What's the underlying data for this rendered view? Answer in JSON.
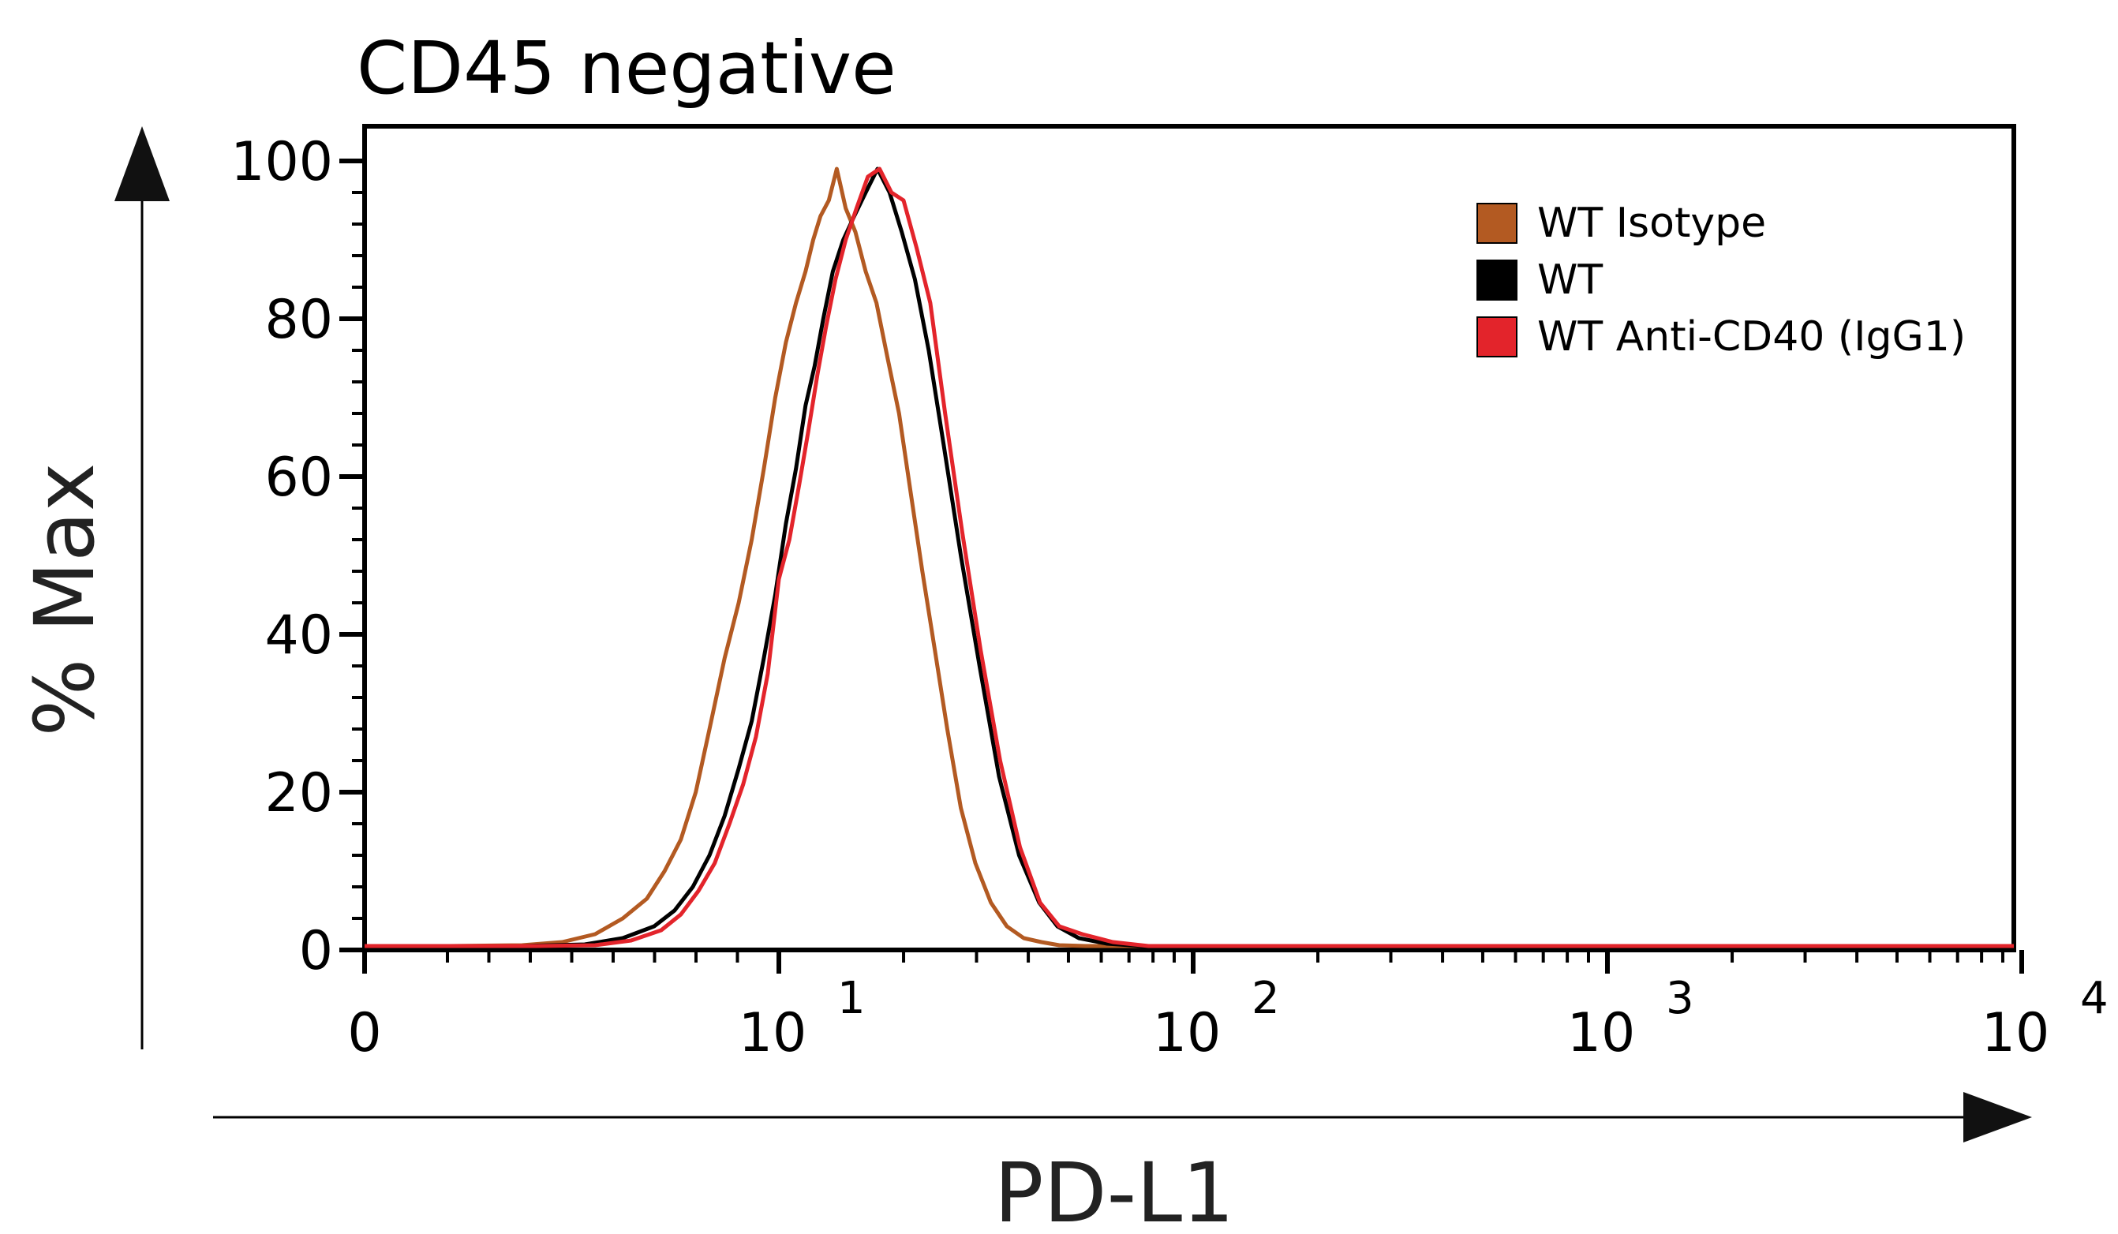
{
  "chart_data": {
    "type": "line",
    "title": "CD45 negative",
    "xlabel": "PD-L1",
    "ylabel": "% Max",
    "x_scale": "biexponential",
    "xlim": [
      0,
      10000
    ],
    "ylim": [
      0,
      100
    ],
    "x_ticks": [
      {
        "value": 0,
        "base": "0",
        "exp": ""
      },
      {
        "value": 10,
        "base": "10",
        "exp": "1"
      },
      {
        "value": 100,
        "base": "10",
        "exp": "2"
      },
      {
        "value": 1000,
        "base": "10",
        "exp": "3"
      },
      {
        "value": 10000,
        "base": "10",
        "exp": "4"
      }
    ],
    "y_ticks": [
      "0",
      "20",
      "40",
      "60",
      "80",
      "100"
    ],
    "grid": false,
    "legend_position": "top-right",
    "series": [
      {
        "name": "WT Isotype",
        "color": "#b35a22",
        "x": [
          0,
          1.6,
          2.4,
          3.0,
          3.6,
          4.2,
          4.8,
          5.3,
          5.8,
          6.3,
          6.8,
          7.4,
          8.0,
          8.6,
          9.2,
          9.8,
          10.4,
          11.0,
          11.6,
          12.1,
          12.6,
          13.2,
          13.8,
          14.5,
          15.3,
          16.2,
          17.2,
          18.3,
          19.5,
          20.8,
          22.2,
          23.8,
          25.5,
          27.5,
          29.8,
          32.5,
          35.5,
          39.0,
          43.0,
          47.5,
          55.0,
          65.0,
          80.0,
          200.0,
          1000.0,
          10000.0
        ],
        "y": [
          0.5,
          0.5,
          0.6,
          1.0,
          2.0,
          4.0,
          6.5,
          10.0,
          14.0,
          20.0,
          28.0,
          37.0,
          44.0,
          52.0,
          61.0,
          70.0,
          77.0,
          82.0,
          86.0,
          90.0,
          93.0,
          95.0,
          99.0,
          94.0,
          91.0,
          86.0,
          82.0,
          75.0,
          68.0,
          58.0,
          48.0,
          38.0,
          28.0,
          18.0,
          11.0,
          6.0,
          3.0,
          1.5,
          1.0,
          0.6,
          0.5,
          0.5,
          0.5,
          0.5,
          0.5,
          0.5
        ]
      },
      {
        "name": "WT",
        "color": "#000000",
        "x": [
          0,
          2.4,
          3.4,
          4.2,
          5.0,
          5.6,
          6.2,
          6.8,
          7.4,
          8.0,
          8.6,
          9.2,
          9.8,
          10.4,
          11.0,
          11.6,
          12.2,
          12.8,
          13.5,
          14.3,
          15.2,
          16.2,
          17.3,
          18.5,
          19.8,
          21.3,
          23.0,
          25.0,
          27.5,
          30.5,
          34.0,
          38.0,
          42.5,
          47.0,
          53.0,
          62.0,
          75.0,
          200.0,
          1000.0,
          10000.0
        ],
        "y": [
          0.5,
          0.5,
          0.7,
          1.5,
          3.0,
          5.0,
          8.0,
          12.0,
          17.0,
          23.0,
          29.0,
          37.0,
          45.0,
          54.0,
          61.0,
          69.0,
          74.0,
          80.0,
          86.0,
          90.0,
          93.0,
          96.0,
          99.0,
          96.0,
          91.0,
          85.0,
          76.0,
          64.0,
          50.0,
          36.0,
          22.0,
          12.0,
          6.0,
          3.0,
          1.5,
          0.8,
          0.5,
          0.5,
          0.5,
          0.5
        ]
      },
      {
        "name": "WT Anti-CD40 (IgG1)",
        "color": "#e3242b",
        "x": [
          0,
          2.6,
          3.6,
          4.4,
          5.2,
          5.8,
          6.4,
          7.0,
          7.6,
          8.2,
          8.8,
          9.4,
          10.0,
          10.6,
          11.2,
          11.8,
          12.4,
          13.0,
          13.7,
          14.5,
          15.4,
          16.4,
          17.5,
          18.7,
          20.0,
          21.5,
          23.2,
          25.2,
          27.7,
          30.7,
          34.2,
          38.2,
          42.7,
          47.5,
          54.0,
          64.0,
          78.0,
          200.0,
          1000.0,
          10000.0
        ],
        "y": [
          0.5,
          0.5,
          0.6,
          1.2,
          2.5,
          4.5,
          7.5,
          11.0,
          16.0,
          21.0,
          27.0,
          35.0,
          47.0,
          52.0,
          59.0,
          66.0,
          73.0,
          79.0,
          85.0,
          90.0,
          94.0,
          98.0,
          99.0,
          96.0,
          95.0,
          89.0,
          82.0,
          68.0,
          53.0,
          38.0,
          24.0,
          13.0,
          6.0,
          3.0,
          2.0,
          1.0,
          0.5,
          0.5,
          0.5,
          0.5
        ]
      }
    ]
  }
}
